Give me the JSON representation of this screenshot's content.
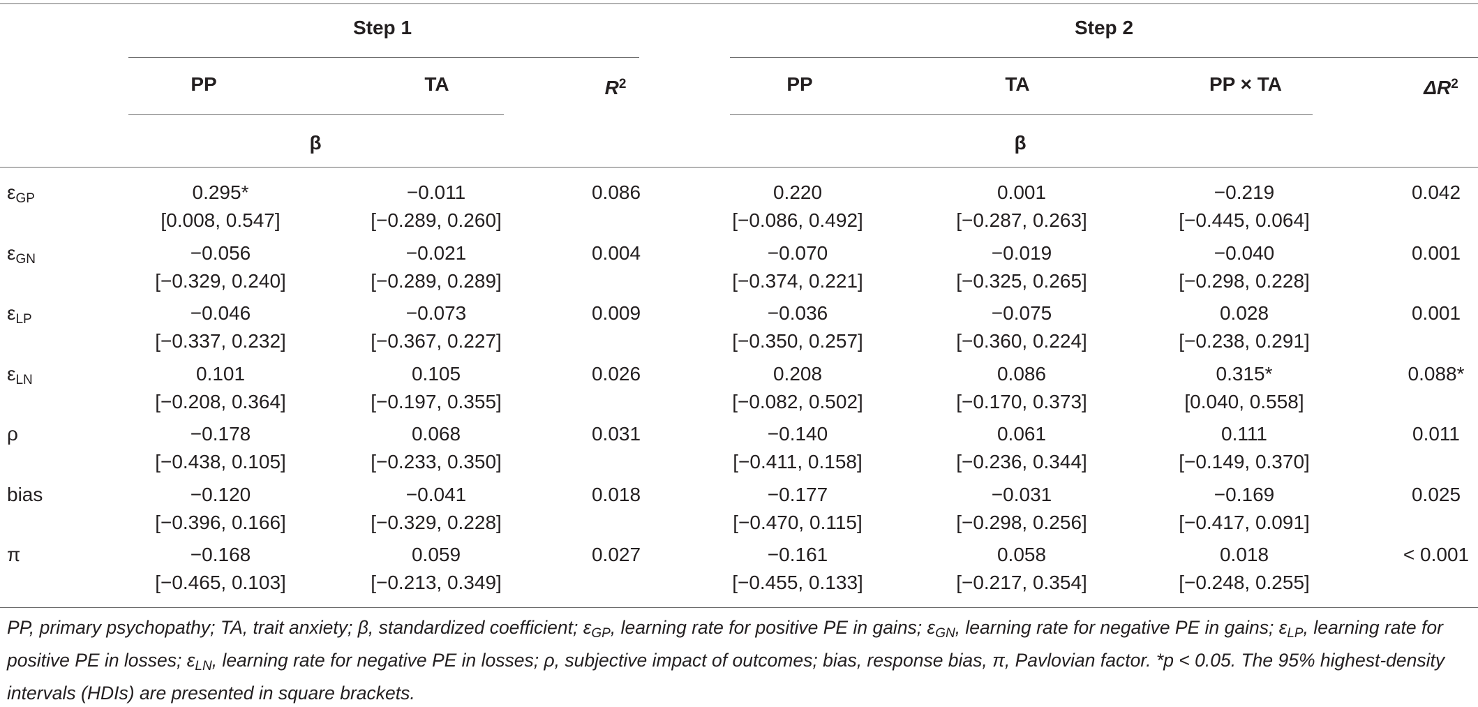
{
  "step1_label": "Step 1",
  "step2_label": "Step 2",
  "beta_label": "β",
  "headers": {
    "s1_pp": "PP",
    "s1_ta": "TA",
    "s1_r2_base": "R",
    "s1_r2_sup": "2",
    "s2_pp": "PP",
    "s2_ta": "TA",
    "s2_ppxta": "PP × TA",
    "s2_dr2_base": "ΔR",
    "s2_dr2_sup": "2"
  },
  "rows": [
    {
      "label": "ε",
      "sub": "GP",
      "s1_pp": "0.295*",
      "s1_pp_ci": "[0.008, 0.547]",
      "s1_ta": "−0.011",
      "s1_ta_ci": "[−0.289, 0.260]",
      "r2": "0.086",
      "s2_pp": "0.220",
      "s2_pp_ci": "[−0.086, 0.492]",
      "s2_ta": "0.001",
      "s2_ta_ci": "[−0.287, 0.263]",
      "s2_x": "−0.219",
      "s2_x_ci": "[−0.445, 0.064]",
      "dr2": "0.042"
    },
    {
      "label": "ε",
      "sub": "GN",
      "s1_pp": "−0.056",
      "s1_pp_ci": "[−0.329, 0.240]",
      "s1_ta": "−0.021",
      "s1_ta_ci": "[−0.289, 0.289]",
      "r2": "0.004",
      "s2_pp": "−0.070",
      "s2_pp_ci": "[−0.374, 0.221]",
      "s2_ta": "−0.019",
      "s2_ta_ci": "[−0.325, 0.265]",
      "s2_x": "−0.040",
      "s2_x_ci": "[−0.298, 0.228]",
      "dr2": "0.001"
    },
    {
      "label": "ε",
      "sub": "LP",
      "s1_pp": "−0.046",
      "s1_pp_ci": "[−0.337, 0.232]",
      "s1_ta": "−0.073",
      "s1_ta_ci": "[−0.367, 0.227]",
      "r2": "0.009",
      "s2_pp": "−0.036",
      "s2_pp_ci": "[−0.350, 0.257]",
      "s2_ta": "−0.075",
      "s2_ta_ci": "[−0.360, 0.224]",
      "s2_x": "0.028",
      "s2_x_ci": "[−0.238, 0.291]",
      "dr2": "0.001"
    },
    {
      "label": "ε",
      "sub": "LN",
      "s1_pp": "0.101",
      "s1_pp_ci": "[−0.208, 0.364]",
      "s1_ta": "0.105",
      "s1_ta_ci": "[−0.197, 0.355]",
      "r2": "0.026",
      "s2_pp": "0.208",
      "s2_pp_ci": "[−0.082, 0.502]",
      "s2_ta": "0.086",
      "s2_ta_ci": "[−0.170, 0.373]",
      "s2_x": "0.315*",
      "s2_x_ci": "[0.040, 0.558]",
      "dr2": "0.088*"
    },
    {
      "label": "ρ",
      "sub": "",
      "s1_pp": "−0.178",
      "s1_pp_ci": "[−0.438, 0.105]",
      "s1_ta": "0.068",
      "s1_ta_ci": "[−0.233, 0.350]",
      "r2": "0.031",
      "s2_pp": "−0.140",
      "s2_pp_ci": "[−0.411, 0.158]",
      "s2_ta": "0.061",
      "s2_ta_ci": "[−0.236, 0.344]",
      "s2_x": "0.111",
      "s2_x_ci": "[−0.149, 0.370]",
      "dr2": "0.011"
    },
    {
      "label": "bias",
      "sub": "",
      "s1_pp": "−0.120",
      "s1_pp_ci": "[−0.396, 0.166]",
      "s1_ta": "−0.041",
      "s1_ta_ci": "[−0.329, 0.228]",
      "r2": "0.018",
      "s2_pp": "−0.177",
      "s2_pp_ci": "[−0.470, 0.115]",
      "s2_ta": "−0.031",
      "s2_ta_ci": "[−0.298, 0.256]",
      "s2_x": "−0.169",
      "s2_x_ci": "[−0.417, 0.091]",
      "dr2": "0.025"
    },
    {
      "label": "π",
      "sub": "",
      "s1_pp": "−0.168",
      "s1_pp_ci": "[−0.465, 0.103]",
      "s1_ta": "0.059",
      "s1_ta_ci": "[−0.213, 0.349]",
      "r2": "0.027",
      "s2_pp": "−0.161",
      "s2_pp_ci": "[−0.455, 0.133]",
      "s2_ta": "0.058",
      "s2_ta_ci": "[−0.217, 0.354]",
      "s2_x": "0.018",
      "s2_x_ci": "[−0.248, 0.255]",
      "dr2": "< 0.001"
    }
  ],
  "footnote": {
    "p1": "PP, primary psychopathy; TA, trait anxiety; β, standardized coefficient; ε",
    "s1": "GP",
    "p2": ", learning rate for positive PE in gains; ε",
    "s2": "GN",
    "p3": ", learning rate for negative PE in gains; ε",
    "s3": "LP",
    "p4": ", learning rate for positive PE in losses; ε",
    "s4": "LN",
    "p5": ", learning rate for negative PE in losses; ρ, subjective impact of outcomes; bias, response bias, π, Pavlovian factor. *p < 0.05. The 95% highest-density intervals (HDIs) are presented in square brackets."
  }
}
